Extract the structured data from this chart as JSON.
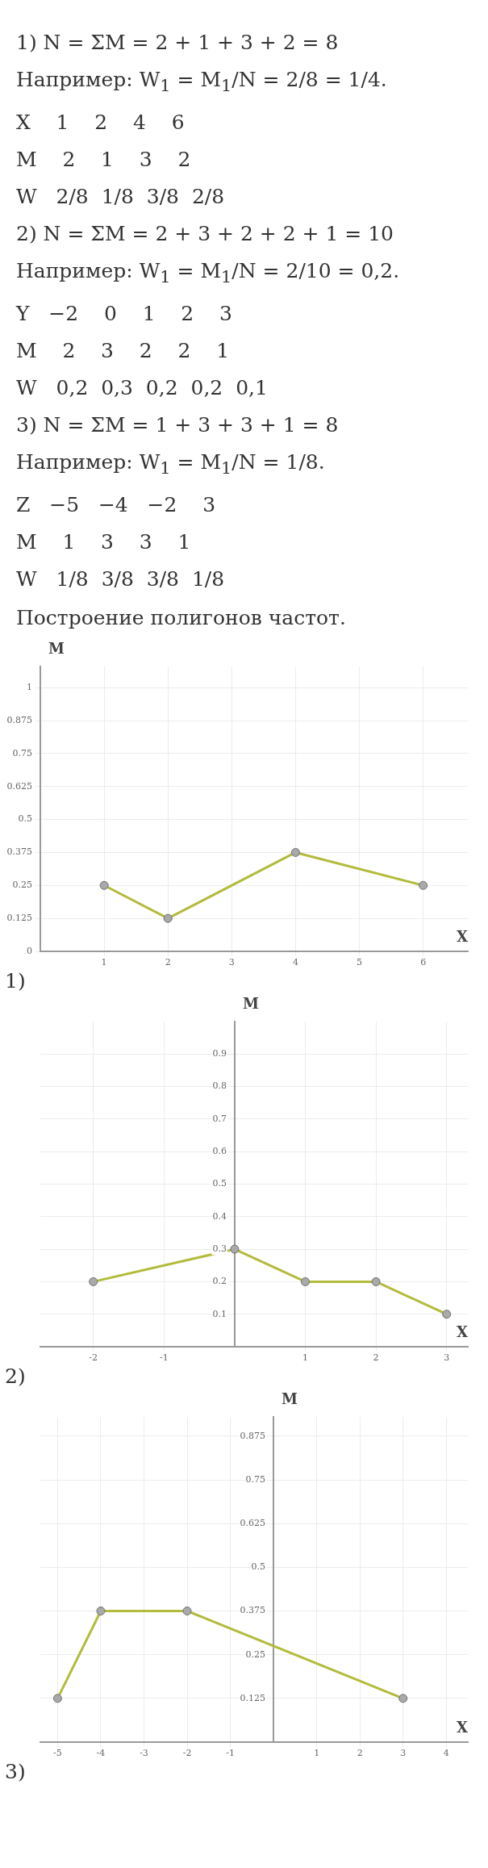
{
  "chart_data": [
    {
      "type": "other",
      "annotations": [
        "1) N = ΣM = 2 + 1 + 3 + 2 = 8",
        "Например: W$_{1}$ = M$_{1}$/N = 2/8 = 1/4.",
        "X    1    2    4    6",
        "M    2    1    3    2",
        "W   2/8  1/8  3/8  2/8",
        "2) N = ΣM = 2 + 3 + 2 + 2 + 1 = 10",
        "Например: W$_{1}$ = M$_{1}$/N = 2/10 = 0,2.",
        "Y   −2    0    1    2    3",
        "M    2    3    2    2    1",
        "W   0,2  0,3  0,2  0,2  0,1",
        "3) N = ΣM = 1 + 3 + 3 + 1 = 8",
        "Например: W$_{1}$ = M$_{1}$/N = 1/8.",
        "Z   −5   −4   −2    3",
        "M    1    3    3    1",
        "W   1/8  3/8  3/8  1/8"
      ]
    },
    {
      "type": "line",
      "title": "Построение полигонов частот.",
      "xlabel": "X",
      "ylabel": "M",
      "x": [
        1,
        2,
        4,
        6
      ],
      "series": [
        {
          "color": "#b3bb3c",
          "values": [
            0.25,
            0.125,
            0.375,
            0.25
          ]
        }
      ],
      "xlim": [
        0,
        6.7
      ],
      "ylim": [
        0,
        1.08
      ],
      "xticks": [
        1,
        2,
        3,
        4,
        5,
        6
      ],
      "yticks": [
        0,
        0.125,
        0.25,
        0.375,
        0.5,
        0.625,
        0.75,
        0.875,
        1
      ],
      "grid": true,
      "marker": "circle",
      "annotations": [
        "1)"
      ]
    },
    {
      "type": "line",
      "xlabel": "X",
      "ylabel": "M",
      "x": [
        -2,
        0,
        1,
        2,
        3
      ],
      "series": [
        {
          "color": "#b3bb3c",
          "values": [
            0.2,
            0.3,
            0.2,
            0.2,
            0.1
          ]
        }
      ],
      "xlim": [
        -2.75,
        3.3
      ],
      "ylim": [
        0,
        1
      ],
      "xticks": [
        -2,
        -1,
        1,
        2,
        3
      ],
      "yticks": [
        0.1,
        0.2,
        0.3,
        0.4,
        0.5,
        0.6,
        0.7,
        0.8,
        0.9
      ],
      "grid": true,
      "marker": "circle",
      "annotations": [
        "2)"
      ]
    },
    {
      "type": "line",
      "xlabel": "X",
      "ylabel": "M",
      "x": [
        -5,
        -4,
        -2,
        3
      ],
      "series": [
        {
          "color": "#b3bb3c",
          "values": [
            0.125,
            0.375,
            0.375,
            0.125
          ]
        }
      ],
      "xlim": [
        -5.4,
        4.5
      ],
      "ylim": [
        0,
        0.93
      ],
      "xticks": [
        -5,
        -4,
        -3,
        -2,
        -1,
        1,
        2,
        3,
        4
      ],
      "yticks": [
        0.125,
        0.25,
        0.375,
        0.5,
        0.625,
        0.75,
        0.875
      ],
      "grid": true,
      "marker": "circle",
      "annotations": [
        "3)"
      ]
    }
  ]
}
